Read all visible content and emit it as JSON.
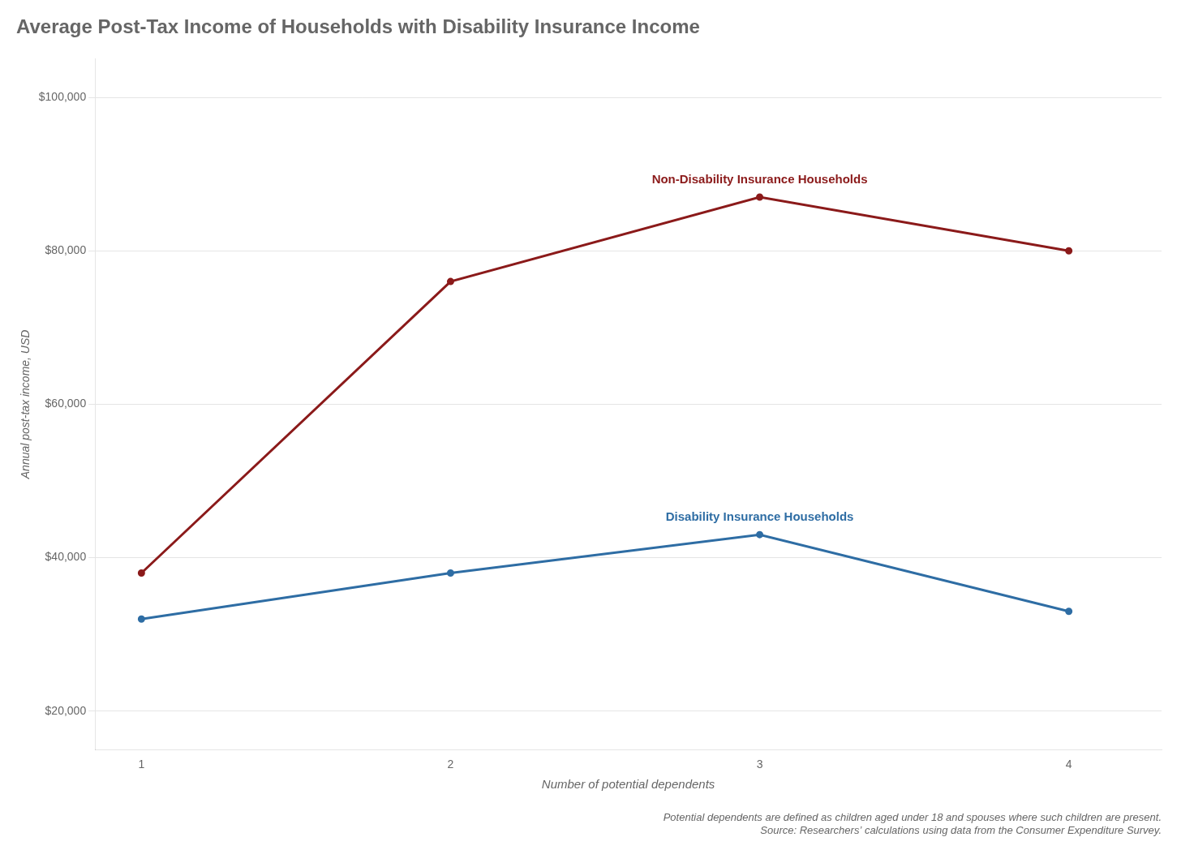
{
  "chart_data": {
    "type": "line",
    "title": "Average Post-Tax Income of Households with Disability Insurance Income",
    "xlabel": "Number of potential dependents",
    "ylabel": "Annual post-tax income, USD",
    "x": [
      1,
      2,
      3,
      4
    ],
    "series": [
      {
        "name": "Non-Disability Insurance Households",
        "color": "#8b1a1a",
        "values": [
          38000,
          76000,
          87000,
          80000
        ]
      },
      {
        "name": "Disability Insurance Households",
        "color": "#2e6da4",
        "values": [
          32000,
          38000,
          43000,
          33000
        ]
      }
    ],
    "xlim": [
      0.85,
      4.3
    ],
    "xticks": [
      1,
      2,
      3,
      4
    ],
    "ylim": [
      15000,
      105000
    ],
    "yticks": [
      {
        "value": 20000,
        "label": "$20,000"
      },
      {
        "value": 40000,
        "label": "$40,000"
      },
      {
        "value": 60000,
        "label": "$60,000"
      },
      {
        "value": 80000,
        "label": "$80,000"
      },
      {
        "value": 100000,
        "label": "$100,000"
      }
    ],
    "grid": "y",
    "annotations": [
      "Potential dependents are defined as children aged under 18 and spouses where such children are present.",
      "Source: Researchers’ calculations using data from the Consumer Expenditure Survey."
    ]
  }
}
